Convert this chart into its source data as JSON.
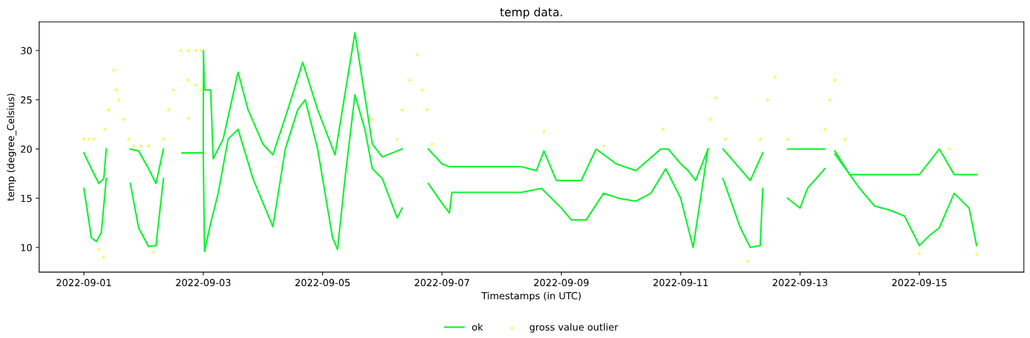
{
  "chart_data": {
    "type": "line",
    "title": "temp data.",
    "xlabel": "Timestamps (in UTC)",
    "ylabel": "temp (degree_Celsius)",
    "xlim": [
      "2022-08-31T06:00",
      "2022-09-16T18:00"
    ],
    "ylim": [
      7.5,
      32.9
    ],
    "xticks": [
      "2022-09-01",
      "2022-09-03",
      "2022-09-05",
      "2022-09-07",
      "2022-09-09",
      "2022-09-11",
      "2022-09-13",
      "2022-09-15"
    ],
    "yticks": [
      10,
      15,
      20,
      25,
      30
    ],
    "legend": "bottom",
    "series": [
      {
        "name": "ok",
        "color": "#0af52c",
        "x": [
          "2022-09-01T00:00",
          "2022-09-01T03:00",
          "2022-09-01T06:00",
          "2022-09-01T08:00",
          "2022-09-01T09:00",
          "2022-09-01T12:00",
          "2022-09-01T18:40",
          "2022-09-01T22:00",
          "2022-09-02T02:00",
          "2022-09-02T05:00",
          "2022-09-02T08:00",
          "2022-09-02T12:00",
          "2022-09-02T15:30",
          "2022-09-03T00:00",
          "2022-09-03T00:05",
          "2022-09-03T00:30",
          "2022-09-03T03:00",
          "2022-09-03T04:00",
          "2022-09-03T08:00",
          "2022-09-03T14:00",
          "2022-09-03T18:00",
          "2022-09-04T00:00",
          "2022-09-04T04:00",
          "2022-09-04T10:00",
          "2022-09-04T16:00",
          "2022-09-04T22:00",
          "2022-09-05T05:00",
          "2022-09-05T13:00",
          "2022-09-05T20:00",
          "2022-09-06T00:00",
          "2022-09-06T08:00",
          "2022-09-06T12:00",
          "2022-09-06T18:30",
          "2022-09-07T00:00",
          "2022-09-07T03:00",
          "2022-09-08T08:00",
          "2022-09-08T14:00",
          "2022-09-08T17:00",
          "2022-09-08T22:00",
          "2022-09-09T08:00",
          "2022-09-09T14:00",
          "2022-09-09T22:00",
          "2022-09-10T06:00",
          "2022-09-10T16:00",
          "2022-09-10T19:00",
          "2022-09-11T00:00",
          "2022-09-11T03:00",
          "2022-09-11T06:00",
          "2022-09-11T11:00",
          "2022-09-11T14:00",
          "2022-09-11T17:00",
          "2022-09-12T04:00",
          "2022-09-12T09:00",
          "2022-09-12T14:00",
          "2022-09-12T19:00",
          "2022-09-13T10:00",
          "2022-09-13T12:00",
          "2022-09-13T14:00",
          "2022-09-13T20:00",
          "2022-09-15T00:00",
          "2022-09-15T08:00",
          "2022-09-15T14:00",
          "2022-09-15T23:00"
        ],
        "values": [
          19.6,
          18,
          16.5,
          17,
          20,
          null,
          20,
          19.8,
          18,
          16.5,
          20,
          null,
          19.6,
          19.6,
          30,
          26,
          26,
          19,
          21,
          27.8,
          24,
          20.5,
          19.4,
          24,
          28.8,
          24,
          19.4,
          31.8,
          20.5,
          19.2,
          20,
          null,
          20,
          18.5,
          18.2,
          18.2,
          17.8,
          19.8,
          16.8,
          16.8,
          20,
          18.5,
          17.8,
          20,
          20,
          18.5,
          17.8,
          16.8,
          20,
          null,
          20,
          16.8,
          19.6,
          null,
          20,
          20,
          null,
          19.8,
          17.4,
          17.4,
          20,
          17.4,
          17.4
        ]
      },
      {
        "color": "#0af52c",
        "x": [
          "2022-09-01T00:00",
          "2022-09-01T03:00",
          "2022-09-01T05:00",
          "2022-09-01T07:00",
          "2022-09-01T09:00",
          "2022-09-01T12:00",
          "2022-09-01T18:40",
          "2022-09-01T22:00",
          "2022-09-02T02:00",
          "2022-09-02T05:00",
          "2022-09-02T08:00",
          "2022-09-02T12:00",
          "2022-09-02T15:30",
          "2022-09-03T00:00",
          "2022-09-03T00:30",
          "2022-09-03T03:00",
          "2022-09-03T06:00",
          "2022-09-03T10:00",
          "2022-09-03T14:00",
          "2022-09-03T20:00",
          "2022-09-04T04:00",
          "2022-09-04T09:00",
          "2022-09-04T14:00",
          "2022-09-04T17:00",
          "2022-09-04T22:00",
          "2022-09-05T04:00",
          "2022-09-05T06:00",
          "2022-09-05T09:00",
          "2022-09-05T13:00",
          "2022-09-05T17:00",
          "2022-09-05T20:00",
          "2022-09-06T00:00",
          "2022-09-06T06:00",
          "2022-09-06T08:00",
          "2022-09-06T12:00",
          "2022-09-06T18:30",
          "2022-09-07T00:00",
          "2022-09-07T03:00",
          "2022-09-07T04:00",
          "2022-09-08T08:00",
          "2022-09-08T16:00",
          "2022-09-09T00:00",
          "2022-09-09T04:00",
          "2022-09-09T10:00",
          "2022-09-09T17:00",
          "2022-09-09T23:00",
          "2022-09-10T06:00",
          "2022-09-10T12:00",
          "2022-09-10T18:00",
          "2022-09-11T00:00",
          "2022-09-11T05:00",
          "2022-09-11T11:00",
          "2022-09-11T14:00",
          "2022-09-11T17:00",
          "2022-09-12T00:00",
          "2022-09-12T04:00",
          "2022-09-12T08:00",
          "2022-09-12T09:00",
          "2022-09-12T14:00",
          "2022-09-12T19:00",
          "2022-09-13T00:00",
          "2022-09-13T03:00",
          "2022-09-13T10:00",
          "2022-09-13T12:00",
          "2022-09-13T14:00",
          "2022-09-14T00:00",
          "2022-09-14T06:00",
          "2022-09-14T12:00",
          "2022-09-14T18:00",
          "2022-09-15T00:00",
          "2022-09-15T04:00",
          "2022-09-15T08:00",
          "2022-09-15T14:00",
          "2022-09-15T20:00",
          "2022-09-15T23:00"
        ],
        "values": [
          16,
          11,
          10.6,
          11.5,
          17,
          null,
          16.5,
          12,
          10.1,
          10.2,
          17,
          null,
          19.6,
          19.6,
          9.6,
          12.5,
          15.5,
          21,
          22,
          17,
          12.1,
          20,
          24,
          25,
          20,
          11,
          9.8,
          17,
          25.5,
          22,
          18,
          17,
          13,
          14,
          null,
          16.5,
          14.5,
          13.5,
          15.6,
          15.6,
          16,
          14,
          12.8,
          12.8,
          15.5,
          15,
          14.7,
          15.5,
          18,
          15,
          10,
          20,
          null,
          17,
          12,
          10,
          10.2,
          16,
          null,
          15,
          14,
          16,
          18,
          null,
          19.5,
          16,
          14.2,
          13.8,
          13.2,
          10.2,
          11.2,
          12,
          15.5,
          14,
          10.2
        ]
      },
      {
        "name": "gross value outlier",
        "type": "scatter",
        "marker": "cross",
        "color": "#f5f53c",
        "x": [
          "2022-09-01T00:00",
          "2022-09-01T02:00",
          "2022-09-01T04:00",
          "2022-09-01T06:00",
          "2022-09-01T08:00",
          "2022-09-01T08:30",
          "2022-09-01T10:00",
          "2022-09-01T12:00",
          "2022-09-01T13:00",
          "2022-09-01T14:00",
          "2022-09-01T16:00",
          "2022-09-01T18:00",
          "2022-09-01T20:00",
          "2022-09-01T23:00",
          "2022-09-02T02:00",
          "2022-09-02T04:00",
          "2022-09-02T08:00",
          "2022-09-02T10:00",
          "2022-09-02T12:00",
          "2022-09-02T15:00",
          "2022-09-02T18:00",
          "2022-09-02T21:00",
          "2022-09-02T23:00",
          "2022-09-02T18:00",
          "2022-09-02T18:00",
          "2022-09-02T21:00",
          "2022-09-02T23:00",
          "2022-09-05T20:00",
          "2022-09-06T06:00",
          "2022-09-06T08:00",
          "2022-09-06T11:00",
          "2022-09-06T14:00",
          "2022-09-06T16:00",
          "2022-09-06T18:00",
          "2022-09-06T20:00",
          "2022-09-08T17:00",
          "2022-09-09T17:00",
          "2022-09-10T17:00",
          "2022-09-11T12:00",
          "2022-09-11T14:00",
          "2022-09-11T18:00",
          "2022-09-12T03:00",
          "2022-09-12T08:00",
          "2022-09-12T11:00",
          "2022-09-12T14:00",
          "2022-09-12T19:00",
          "2022-09-13T10:00",
          "2022-09-13T12:00",
          "2022-09-13T14:00",
          "2022-09-13T18:00",
          "2022-09-15T00:00",
          "2022-09-15T12:00",
          "2022-09-15T23:00"
        ],
        "values": [
          21,
          21,
          21,
          9.8,
          9,
          22,
          24,
          28,
          26,
          25,
          23,
          21,
          20.3,
          20.3,
          20.3,
          9.5,
          21,
          24,
          26,
          30,
          30,
          30,
          30,
          27,
          23.1,
          26.5,
          26,
          23,
          21,
          24,
          27,
          29.6,
          26,
          24,
          20.5,
          21.8,
          20.3,
          22,
          23,
          25.2,
          21,
          8.6,
          21,
          25,
          27.3,
          21,
          22,
          25,
          27,
          21,
          9.4,
          20,
          9.3
        ]
      }
    ]
  }
}
